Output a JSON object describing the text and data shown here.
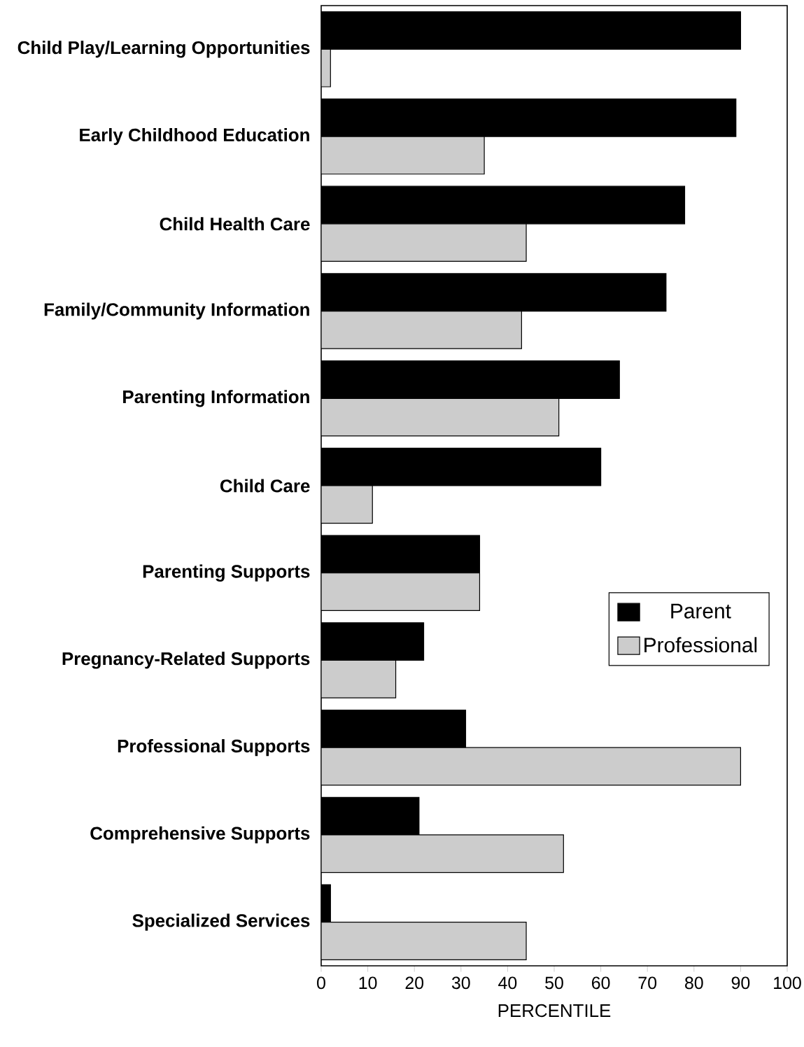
{
  "chart_data": {
    "type": "bar",
    "orientation": "horizontal",
    "xlabel": "PERCENTILE",
    "categories": [
      "Child Play/Learning Opportunities",
      "Early Childhood Education",
      "Child Health Care",
      "Family/Community Information",
      "Parenting Information",
      "Child Care",
      "Parenting Supports",
      "Pregnancy-Related Supports",
      "Professional Supports",
      "Comprehensive Supports",
      "Specialized Services"
    ],
    "series": [
      {
        "name": "Parent",
        "color": "#000000",
        "values": [
          90,
          89,
          78,
          74,
          64,
          60,
          34,
          22,
          31,
          21,
          2
        ]
      },
      {
        "name": "Professional",
        "color": "#cccccc",
        "values": [
          2,
          35,
          44,
          43,
          51,
          11,
          34,
          16,
          90,
          52,
          44
        ]
      }
    ],
    "xlim": [
      0,
      100
    ],
    "xticks": [
      0,
      10,
      20,
      30,
      40,
      50,
      60,
      70,
      80,
      90,
      100
    ],
    "legend": "right"
  }
}
